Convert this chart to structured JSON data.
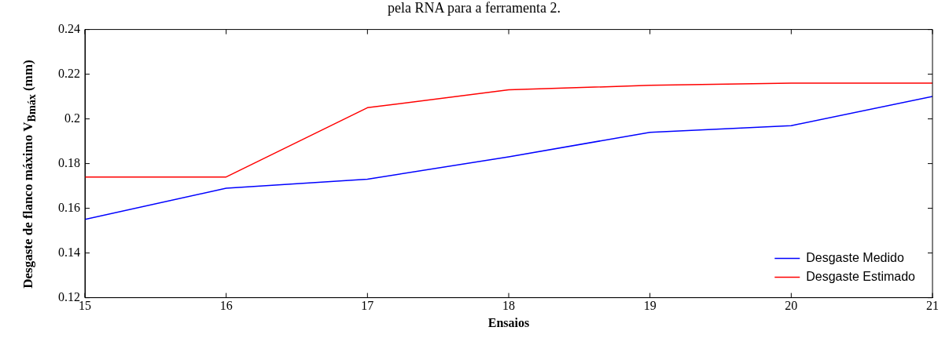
{
  "chart_data": {
    "type": "line",
    "title": "pela RNA para a ferramenta 2.",
    "xlabel": "Ensaios",
    "ylabel": "Desgaste de flanco máximo V$_{Bmáx}$ (mm)",
    "x": [
      15,
      16,
      17,
      18,
      19,
      20,
      21
    ],
    "series": [
      {
        "name": "Desgaste Medido",
        "color": "#0000ff",
        "values": [
          0.155,
          0.169,
          0.173,
          0.183,
          0.194,
          0.197,
          0.21
        ]
      },
      {
        "name": "Desgaste Estimado",
        "color": "#ff0000",
        "values": [
          0.174,
          0.174,
          0.205,
          0.213,
          0.215,
          0.216,
          0.216
        ]
      }
    ],
    "xlim": [
      15,
      21
    ],
    "xticks": [
      15,
      16,
      17,
      18,
      19,
      20,
      21
    ],
    "ylim": [
      0.12,
      0.24
    ],
    "yticks": [
      0.12,
      0.14,
      0.16,
      0.18,
      0.2,
      0.22,
      0.24
    ],
    "grid": false,
    "legend": "bottom right",
    "marker": "none",
    "line_style": "solid"
  }
}
